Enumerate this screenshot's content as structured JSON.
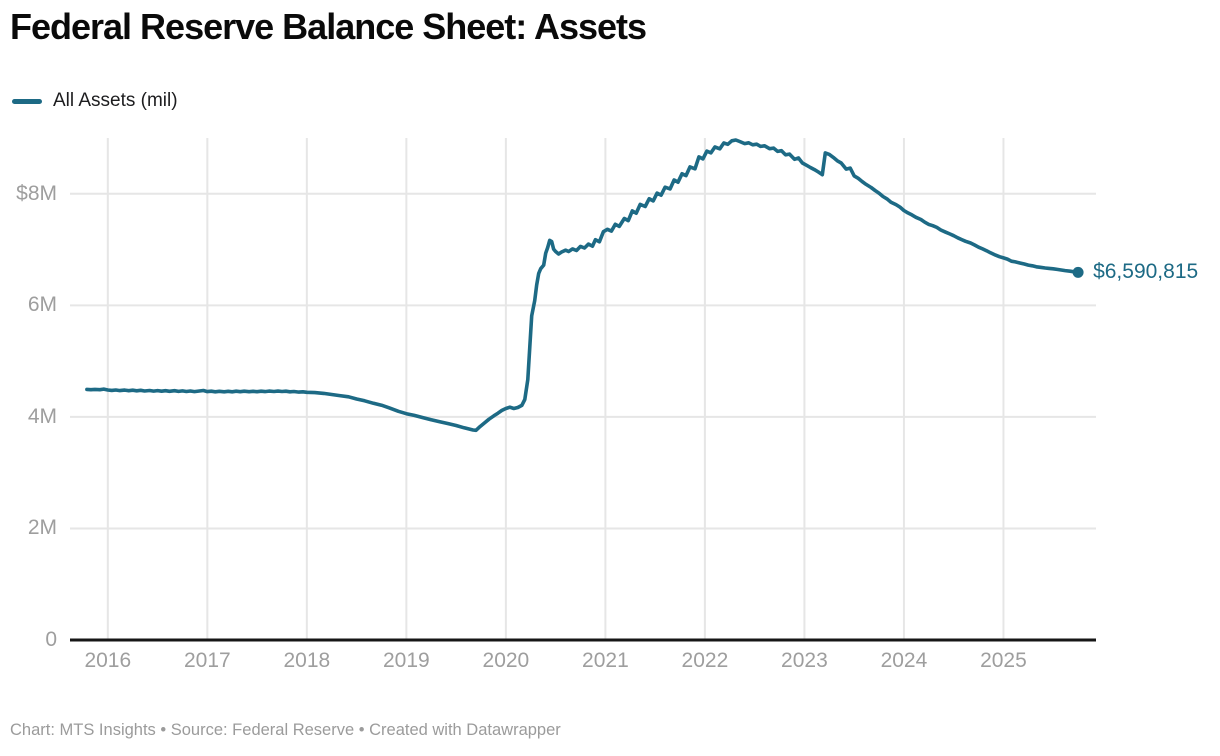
{
  "header": {
    "title": "Federal Reserve Balance Sheet: Assets"
  },
  "legend": {
    "label": "All Assets (mil)",
    "swatch_color": "#1d6a85"
  },
  "footer": {
    "text": "Chart: MTS Insights • Source: Federal Reserve • Created with Datawrapper"
  },
  "colors": {
    "line": "#1d6a85",
    "end_dot": "#1d6a85",
    "end_label_text": "#1d6a85",
    "grid": "#e6e6e6",
    "axis_baseline": "#161616",
    "tick_text": "#9e9e9e",
    "title_text": "#0a0a0a",
    "footer_text": "#9b9b9b"
  },
  "chart_data": {
    "type": "line",
    "title": "Federal Reserve Balance Sheet: Assets",
    "ylabel": "All Assets (mil)",
    "xlabel": "",
    "grid": true,
    "legend_position": "top-left",
    "xlim": [
      2015.62,
      2025.93
    ],
    "ylim": [
      0,
      9000000
    ],
    "end_label": "$6,590,815",
    "end_value": 6590815,
    "y_ticks": [
      {
        "value": 0,
        "label": "0"
      },
      {
        "value": 2000000,
        "label": "2M"
      },
      {
        "value": 4000000,
        "label": "4M"
      },
      {
        "value": 6000000,
        "label": "6M"
      },
      {
        "value": 8000000,
        "label": "$8M"
      }
    ],
    "x_ticks": [
      {
        "value": 2016,
        "label": "2016"
      },
      {
        "value": 2017,
        "label": "2017"
      },
      {
        "value": 2018,
        "label": "2018"
      },
      {
        "value": 2019,
        "label": "2019"
      },
      {
        "value": 2020,
        "label": "2020"
      },
      {
        "value": 2021,
        "label": "2021"
      },
      {
        "value": 2022,
        "label": "2022"
      },
      {
        "value": 2023,
        "label": "2023"
      },
      {
        "value": 2024,
        "label": "2024"
      },
      {
        "value": 2025,
        "label": "2025"
      }
    ],
    "series": [
      {
        "name": "All Assets (mil)",
        "color": "#1d6a85",
        "points": [
          [
            2015.79,
            4492000
          ],
          [
            2015.83,
            4487000
          ],
          [
            2015.87,
            4493000
          ],
          [
            2015.92,
            4488000
          ],
          [
            2015.96,
            4498000
          ],
          [
            2016.0,
            4482000
          ],
          [
            2016.04,
            4475000
          ],
          [
            2016.08,
            4482000
          ],
          [
            2016.12,
            4472000
          ],
          [
            2016.17,
            4480000
          ],
          [
            2016.21,
            4470000
          ],
          [
            2016.25,
            4478000
          ],
          [
            2016.29,
            4468000
          ],
          [
            2016.33,
            4476000
          ],
          [
            2016.37,
            4464000
          ],
          [
            2016.42,
            4474000
          ],
          [
            2016.46,
            4462000
          ],
          [
            2016.5,
            4472000
          ],
          [
            2016.54,
            4461000
          ],
          [
            2016.58,
            4470000
          ],
          [
            2016.62,
            4459000
          ],
          [
            2016.67,
            4469000
          ],
          [
            2016.71,
            4457000
          ],
          [
            2016.75,
            4466000
          ],
          [
            2016.79,
            4456000
          ],
          [
            2016.83,
            4465000
          ],
          [
            2016.87,
            4453000
          ],
          [
            2016.92,
            4464000
          ],
          [
            2016.96,
            4473000
          ],
          [
            2017.0,
            4454000
          ],
          [
            2017.04,
            4460000
          ],
          [
            2017.08,
            4450000
          ],
          [
            2017.12,
            4459000
          ],
          [
            2017.17,
            4449000
          ],
          [
            2017.21,
            4458000
          ],
          [
            2017.25,
            4450000
          ],
          [
            2017.29,
            4461000
          ],
          [
            2017.33,
            4452000
          ],
          [
            2017.37,
            4460000
          ],
          [
            2017.42,
            4451000
          ],
          [
            2017.46,
            4459000
          ],
          [
            2017.5,
            4452000
          ],
          [
            2017.54,
            4460000
          ],
          [
            2017.58,
            4453000
          ],
          [
            2017.62,
            4462000
          ],
          [
            2017.67,
            4456000
          ],
          [
            2017.71,
            4463000
          ],
          [
            2017.75,
            4455000
          ],
          [
            2017.79,
            4460000
          ],
          [
            2017.83,
            4450000
          ],
          [
            2017.87,
            4455000
          ],
          [
            2017.92,
            4444000
          ],
          [
            2017.96,
            4449000
          ],
          [
            2018.0,
            4441000
          ],
          [
            2018.08,
            4436000
          ],
          [
            2018.17,
            4421000
          ],
          [
            2018.25,
            4402000
          ],
          [
            2018.33,
            4381000
          ],
          [
            2018.42,
            4360000
          ],
          [
            2018.5,
            4321000
          ],
          [
            2018.58,
            4289000
          ],
          [
            2018.67,
            4243000
          ],
          [
            2018.75,
            4209000
          ],
          [
            2018.83,
            4162000
          ],
          [
            2018.92,
            4101000
          ],
          [
            2019.0,
            4058000
          ],
          [
            2019.08,
            4026000
          ],
          [
            2019.17,
            3985000
          ],
          [
            2019.25,
            3948000
          ],
          [
            2019.33,
            3915000
          ],
          [
            2019.42,
            3880000
          ],
          [
            2019.5,
            3845000
          ],
          [
            2019.58,
            3805000
          ],
          [
            2019.63,
            3782000
          ],
          [
            2019.67,
            3765000
          ],
          [
            2019.7,
            3760000
          ],
          [
            2019.74,
            3826000
          ],
          [
            2019.79,
            3900000
          ],
          [
            2019.83,
            3958000
          ],
          [
            2019.88,
            4020000
          ],
          [
            2019.92,
            4066000
          ],
          [
            2019.96,
            4116000
          ],
          [
            2020.0,
            4151000
          ],
          [
            2020.04,
            4173000
          ],
          [
            2020.08,
            4151000
          ],
          [
            2020.12,
            4168000
          ],
          [
            2020.16,
            4206000
          ],
          [
            2020.19,
            4312000
          ],
          [
            2020.22,
            4668000
          ],
          [
            2020.24,
            5254000
          ],
          [
            2020.26,
            5812000
          ],
          [
            2020.29,
            6083000
          ],
          [
            2020.31,
            6368000
          ],
          [
            2020.33,
            6573000
          ],
          [
            2020.35,
            6656000
          ],
          [
            2020.38,
            6721000
          ],
          [
            2020.4,
            6934000
          ],
          [
            2020.42,
            7037000
          ],
          [
            2020.44,
            7165000
          ],
          [
            2020.46,
            7143000
          ],
          [
            2020.48,
            7009000
          ],
          [
            2020.5,
            6965000
          ],
          [
            2020.53,
            6921000
          ],
          [
            2020.56,
            6956000
          ],
          [
            2020.6,
            6989000
          ],
          [
            2020.63,
            6965000
          ],
          [
            2020.67,
            7012000
          ],
          [
            2020.71,
            6983000
          ],
          [
            2020.75,
            7056000
          ],
          [
            2020.79,
            7028000
          ],
          [
            2020.83,
            7098000
          ],
          [
            2020.87,
            7061000
          ],
          [
            2020.9,
            7176000
          ],
          [
            2020.94,
            7139000
          ],
          [
            2020.98,
            7320000
          ],
          [
            2021.02,
            7363000
          ],
          [
            2021.06,
            7330000
          ],
          [
            2021.1,
            7452000
          ],
          [
            2021.14,
            7415000
          ],
          [
            2021.19,
            7557000
          ],
          [
            2021.23,
            7520000
          ],
          [
            2021.27,
            7693000
          ],
          [
            2021.31,
            7652000
          ],
          [
            2021.35,
            7810000
          ],
          [
            2021.4,
            7772000
          ],
          [
            2021.44,
            7911000
          ],
          [
            2021.48,
            7873000
          ],
          [
            2021.52,
            8012000
          ],
          [
            2021.56,
            7974000
          ],
          [
            2021.6,
            8118000
          ],
          [
            2021.65,
            8087000
          ],
          [
            2021.69,
            8247000
          ],
          [
            2021.73,
            8208000
          ],
          [
            2021.77,
            8358000
          ],
          [
            2021.81,
            8326000
          ],
          [
            2021.85,
            8482000
          ],
          [
            2021.9,
            8448000
          ],
          [
            2021.94,
            8661000
          ],
          [
            2021.98,
            8625000
          ],
          [
            2022.02,
            8765000
          ],
          [
            2022.06,
            8733000
          ],
          [
            2022.1,
            8838000
          ],
          [
            2022.15,
            8806000
          ],
          [
            2022.19,
            8911000
          ],
          [
            2022.23,
            8887000
          ],
          [
            2022.27,
            8950000
          ],
          [
            2022.31,
            8965000
          ],
          [
            2022.35,
            8937000
          ],
          [
            2022.4,
            8899000
          ],
          [
            2022.44,
            8914000
          ],
          [
            2022.48,
            8878000
          ],
          [
            2022.52,
            8889000
          ],
          [
            2022.56,
            8849000
          ],
          [
            2022.6,
            8861000
          ],
          [
            2022.65,
            8808000
          ],
          [
            2022.69,
            8819000
          ],
          [
            2022.73,
            8759000
          ],
          [
            2022.77,
            8772000
          ],
          [
            2022.81,
            8699000
          ],
          [
            2022.85,
            8712000
          ],
          [
            2022.9,
            8619000
          ],
          [
            2022.94,
            8641000
          ],
          [
            2022.98,
            8551000
          ],
          [
            2023.02,
            8513000
          ],
          [
            2023.06,
            8471000
          ],
          [
            2023.1,
            8433000
          ],
          [
            2023.14,
            8390000
          ],
          [
            2023.18,
            8342000
          ],
          [
            2023.21,
            8733000
          ],
          [
            2023.25,
            8706000
          ],
          [
            2023.29,
            8652000
          ],
          [
            2023.33,
            8592000
          ],
          [
            2023.37,
            8551000
          ],
          [
            2023.42,
            8442000
          ],
          [
            2023.46,
            8461000
          ],
          [
            2023.5,
            8321000
          ],
          [
            2023.54,
            8278000
          ],
          [
            2023.58,
            8221000
          ],
          [
            2023.62,
            8168000
          ],
          [
            2023.67,
            8112000
          ],
          [
            2023.71,
            8058000
          ],
          [
            2023.75,
            8011000
          ],
          [
            2023.79,
            7952000
          ],
          [
            2023.83,
            7908000
          ],
          [
            2023.87,
            7848000
          ],
          [
            2023.92,
            7806000
          ],
          [
            2023.96,
            7761000
          ],
          [
            2024.0,
            7701000
          ],
          [
            2024.04,
            7658000
          ],
          [
            2024.08,
            7621000
          ],
          [
            2024.12,
            7578000
          ],
          [
            2024.17,
            7538000
          ],
          [
            2024.21,
            7490000
          ],
          [
            2024.25,
            7451000
          ],
          [
            2024.29,
            7428000
          ],
          [
            2024.33,
            7398000
          ],
          [
            2024.37,
            7351000
          ],
          [
            2024.42,
            7312000
          ],
          [
            2024.46,
            7281000
          ],
          [
            2024.5,
            7248000
          ],
          [
            2024.54,
            7210000
          ],
          [
            2024.58,
            7178000
          ],
          [
            2024.62,
            7148000
          ],
          [
            2024.67,
            7118000
          ],
          [
            2024.71,
            7082000
          ],
          [
            2024.75,
            7043000
          ],
          [
            2024.79,
            7011000
          ],
          [
            2024.83,
            6979000
          ],
          [
            2024.87,
            6942000
          ],
          [
            2024.92,
            6901000
          ],
          [
            2024.96,
            6872000
          ],
          [
            2025.0,
            6851000
          ],
          [
            2025.04,
            6829000
          ],
          [
            2025.08,
            6791000
          ],
          [
            2025.12,
            6779000
          ],
          [
            2025.17,
            6758000
          ],
          [
            2025.21,
            6741000
          ],
          [
            2025.25,
            6721000
          ],
          [
            2025.29,
            6708000
          ],
          [
            2025.33,
            6691000
          ],
          [
            2025.37,
            6681000
          ],
          [
            2025.42,
            6669000
          ],
          [
            2025.46,
            6662000
          ],
          [
            2025.5,
            6655000
          ],
          [
            2025.54,
            6645000
          ],
          [
            2025.58,
            6634000
          ],
          [
            2025.62,
            6622000
          ],
          [
            2025.67,
            6612000
          ],
          [
            2025.71,
            6601000
          ],
          [
            2025.75,
            6590815
          ]
        ]
      }
    ]
  }
}
